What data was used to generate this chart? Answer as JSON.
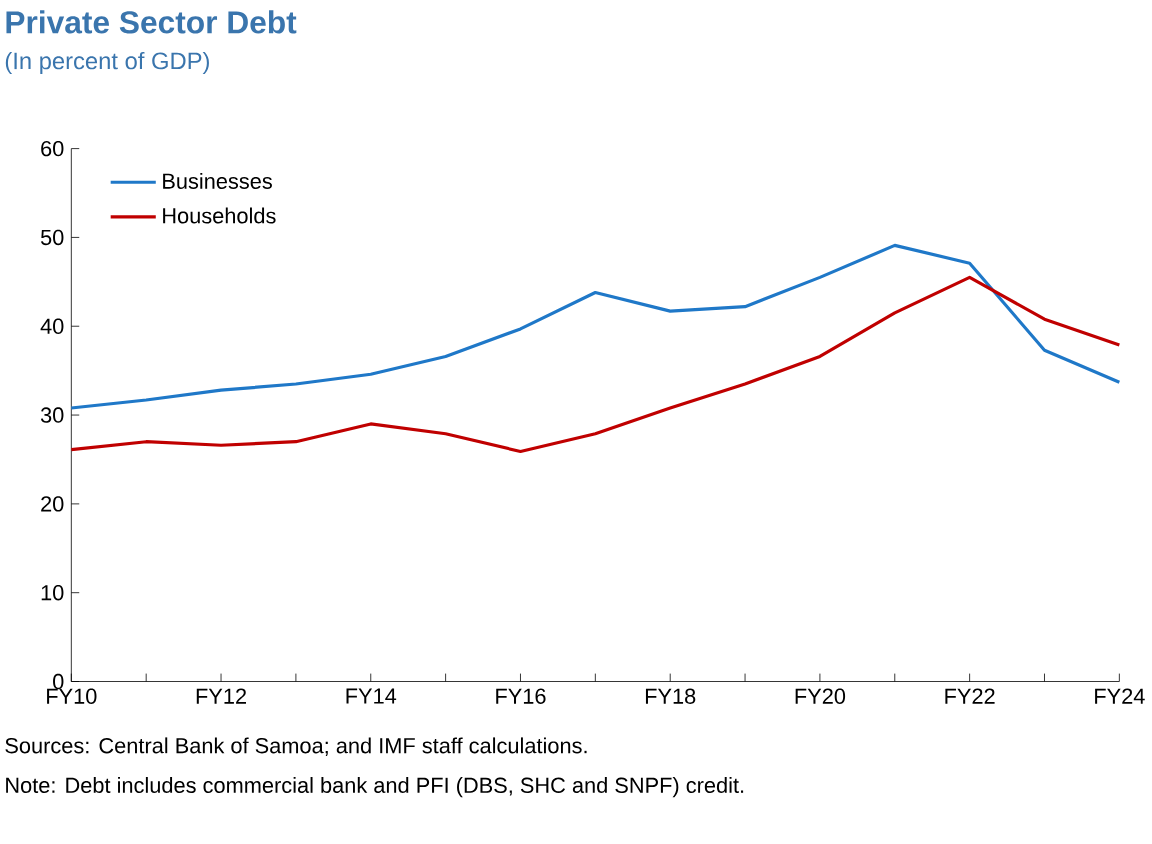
{
  "chart_data": {
    "type": "line",
    "title": "Private Sector Debt",
    "subtitle": "(In percent of GDP)",
    "categories": [
      "FY10",
      null,
      "FY12",
      null,
      "FY14",
      null,
      "FY16",
      null,
      "FY18",
      null,
      "FY20",
      null,
      "FY22",
      null,
      "FY24"
    ],
    "series": [
      {
        "name": "Businesses",
        "color": "#1f78c8",
        "values": [
          30.8,
          31.7,
          32.8,
          33.5,
          34.6,
          36.6,
          39.7,
          43.8,
          41.7,
          42.2,
          45.5,
          49.1,
          47.1,
          37.3,
          33.7
        ]
      },
      {
        "name": "Households",
        "color": "#c00000",
        "values": [
          26.1,
          27.0,
          26.6,
          27.0,
          29.0,
          27.9,
          25.9,
          27.9,
          30.8,
          33.5,
          36.6,
          41.5,
          45.5,
          40.8,
          37.9
        ]
      }
    ],
    "ylim": [
      0,
      60
    ],
    "yticks": [
      0,
      10,
      20,
      30,
      40,
      50,
      60
    ],
    "legend": "top left",
    "annotations": [
      "Sources: Central Bank of Samoa; and IMF staff calculations.",
      "Note: Debt includes commercial bank and PFI (DBS, SHC and SNPF) credit."
    ]
  }
}
